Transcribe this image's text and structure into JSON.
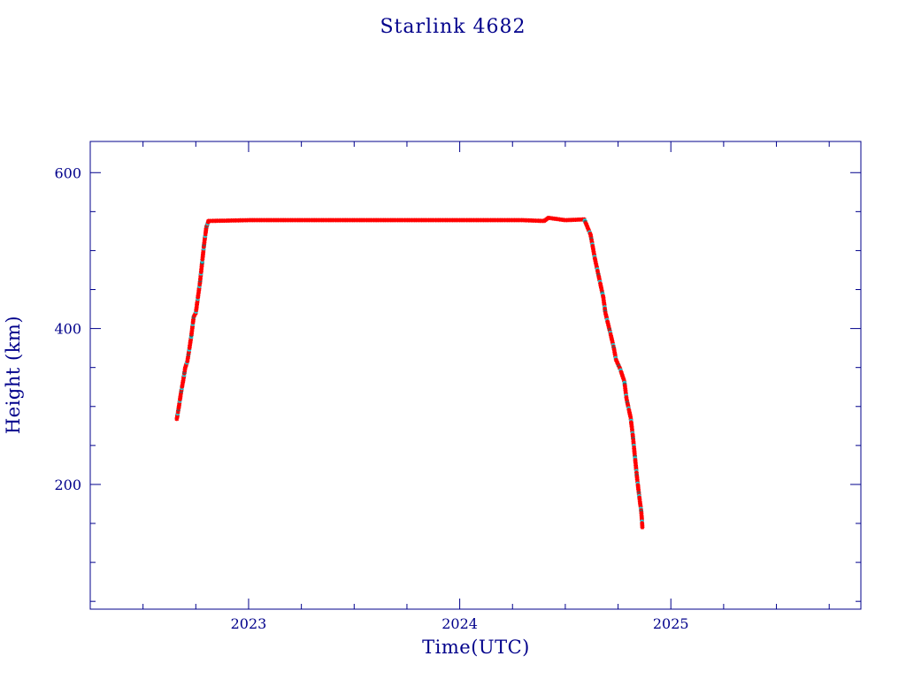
{
  "chart_data": {
    "type": "scatter",
    "title": "Starlink 4682",
    "xlabel": "Time(UTC)",
    "ylabel": "Height (km)",
    "xlim": [
      2022.25,
      2025.9
    ],
    "ylim": [
      40,
      640
    ],
    "x_ticks": [
      2023,
      2024,
      2025
    ],
    "x_tick_labels": [
      "2023",
      "2024",
      "2025"
    ],
    "y_ticks": [
      200,
      400,
      600
    ],
    "y_tick_labels": [
      "200",
      "400",
      "600"
    ],
    "grid": false,
    "legend": "none",
    "colors": {
      "primary": "#ff0000",
      "secondary": "#00e5ee",
      "tertiary": "#555555",
      "axis": "#00008b"
    },
    "series": [
      {
        "values": [
          [
            2022.66,
            284
          ],
          [
            2022.67,
            300
          ],
          [
            2022.68,
            318
          ],
          [
            2022.69,
            333
          ],
          [
            2022.7,
            350
          ],
          [
            2022.71,
            358
          ],
          [
            2022.72,
            375
          ],
          [
            2022.73,
            393
          ],
          [
            2022.74,
            415
          ],
          [
            2022.75,
            420
          ],
          [
            2022.76,
            440
          ],
          [
            2022.77,
            460
          ],
          [
            2022.78,
            485
          ],
          [
            2022.79,
            510
          ],
          [
            2022.8,
            530
          ],
          [
            2022.81,
            538
          ],
          [
            2023.0,
            539
          ],
          [
            2023.5,
            539
          ],
          [
            2024.0,
            539
          ],
          [
            2024.3,
            539
          ],
          [
            2024.4,
            538
          ],
          [
            2024.42,
            542
          ],
          [
            2024.5,
            539
          ],
          [
            2024.59,
            540
          ],
          [
            2024.62,
            520
          ],
          [
            2024.64,
            490
          ],
          [
            2024.66,
            465
          ],
          [
            2024.68,
            440
          ],
          [
            2024.69,
            420
          ],
          [
            2024.71,
            398
          ],
          [
            2024.73,
            375
          ],
          [
            2024.74,
            360
          ],
          [
            2024.76,
            348
          ],
          [
            2024.78,
            332
          ],
          [
            2024.79,
            310
          ],
          [
            2024.81,
            285
          ],
          [
            2024.82,
            262
          ],
          [
            2024.83,
            235
          ],
          [
            2024.84,
            208
          ],
          [
            2024.85,
            185
          ],
          [
            2024.86,
            165
          ],
          [
            2024.865,
            145
          ]
        ]
      }
    ]
  }
}
